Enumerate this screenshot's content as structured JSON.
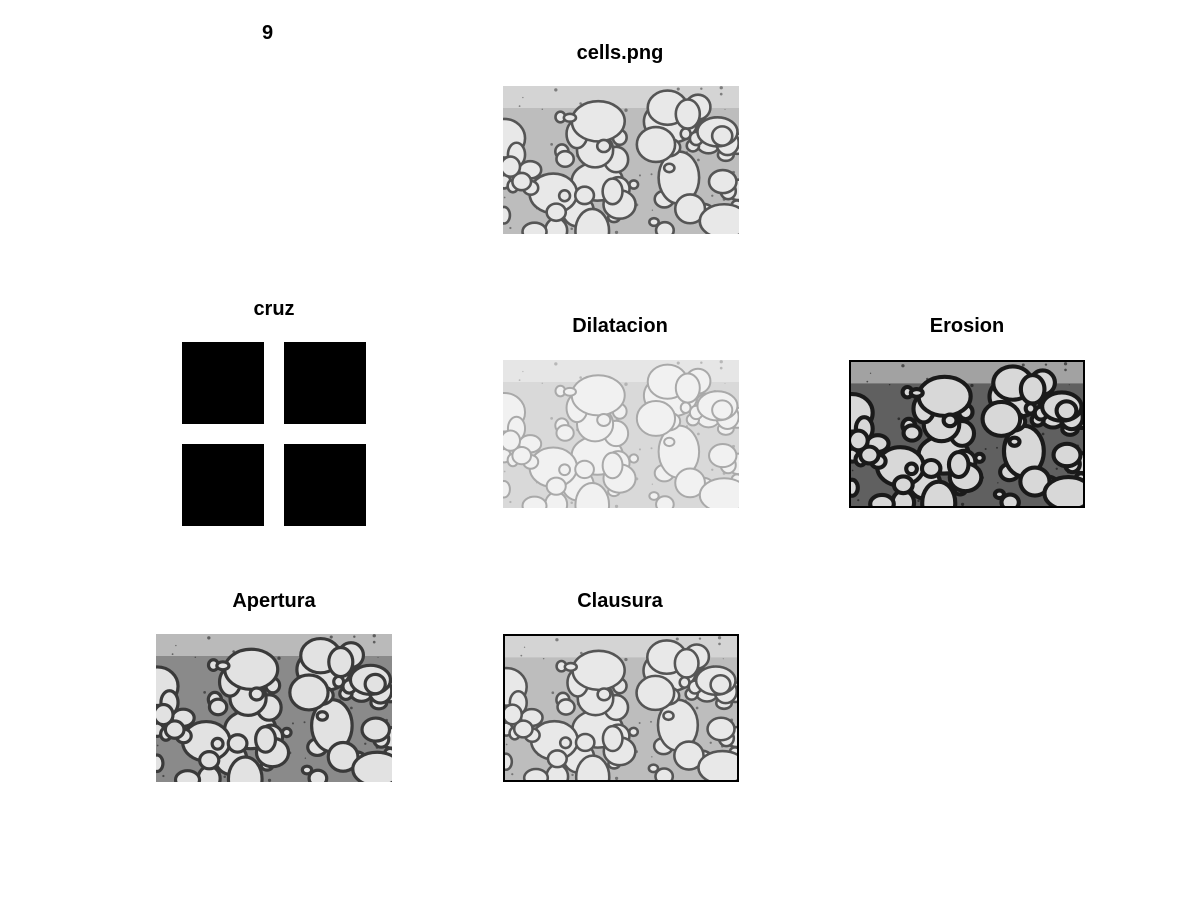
{
  "figure_number": "9",
  "panels": {
    "original": {
      "title": "cells.png",
      "tone": "light"
    },
    "structuring_element": {
      "title": "cruz",
      "grid": [
        [
          1,
          0,
          1
        ],
        [
          0,
          0,
          0
        ],
        [
          1,
          0,
          1
        ]
      ]
    },
    "dilation": {
      "title": "Dilatacion",
      "tone": "very-light"
    },
    "erosion": {
      "title": "Erosion",
      "tone": "dark"
    },
    "opening": {
      "title": "Apertura",
      "tone": "medium-dark"
    },
    "closing": {
      "title": "Clausura",
      "tone": "light"
    }
  },
  "colors": {
    "background": "#ffffff",
    "text": "#000000",
    "mask": "#000000"
  }
}
